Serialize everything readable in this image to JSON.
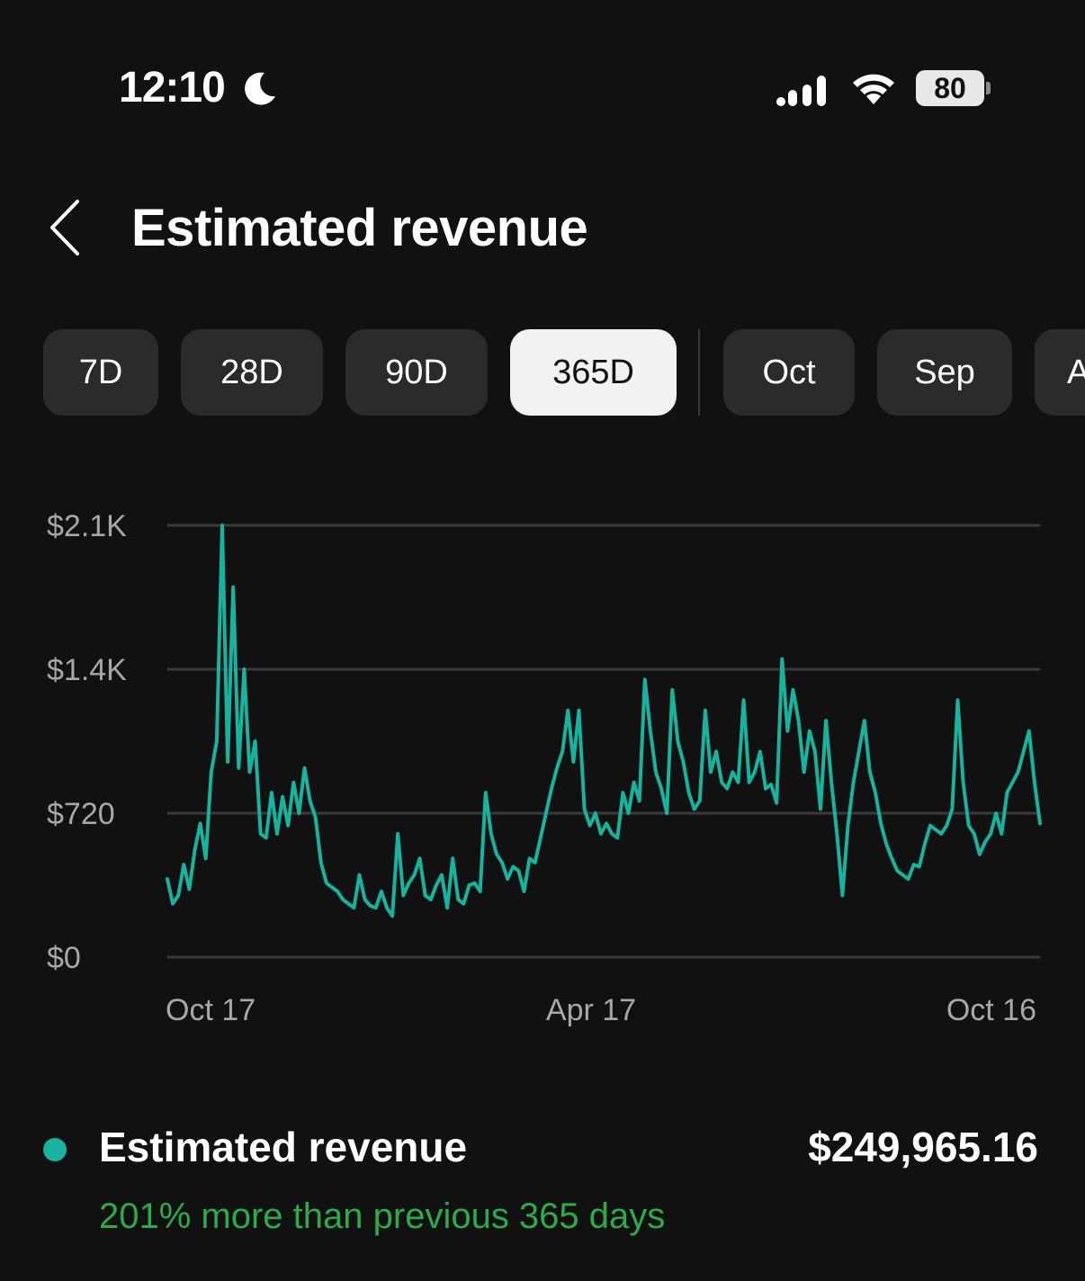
{
  "status_bar": {
    "time": "12:10",
    "battery": "80"
  },
  "header": {
    "title": "Estimated revenue"
  },
  "ranges": [
    {
      "label": "7D",
      "active": false
    },
    {
      "label": "28D",
      "active": false
    },
    {
      "label": "90D",
      "active": false
    },
    {
      "label": "365D",
      "active": true
    },
    {
      "label": "Oct",
      "active": false
    },
    {
      "label": "Sep",
      "active": false
    },
    {
      "label": "A",
      "active": false
    }
  ],
  "colors": {
    "line": "#18b39e",
    "change_text": "#2faa4a"
  },
  "chart_data": {
    "type": "line",
    "y_ticks": [
      "$2.1K",
      "$1.4K",
      "$720",
      "$0"
    ],
    "x_ticks": [
      "Oct 17",
      "Apr 17",
      "Oct 16"
    ],
    "ylim": [
      0,
      2100
    ],
    "grid": true,
    "series": [
      {
        "name": "Estimated revenue",
        "values": [
          380,
          260,
          300,
          450,
          330,
          520,
          650,
          480,
          900,
          1050,
          2100,
          950,
          1800,
          920,
          1400,
          900,
          1050,
          600,
          580,
          800,
          600,
          780,
          640,
          850,
          700,
          920,
          760,
          680,
          460,
          360,
          340,
          320,
          280,
          260,
          240,
          400,
          280,
          250,
          240,
          320,
          240,
          200,
          600,
          300,
          360,
          400,
          480,
          300,
          280,
          350,
          400,
          240,
          480,
          280,
          260,
          350,
          360,
          320,
          800,
          600,
          500,
          460,
          380,
          440,
          420,
          320,
          480,
          460,
          580,
          700,
          820,
          920,
          1000,
          1200,
          950,
          1200,
          720,
          640,
          700,
          600,
          650,
          600,
          580,
          800,
          700,
          850,
          760,
          1350,
          1100,
          900,
          820,
          700,
          1300,
          1050,
          950,
          800,
          720,
          760,
          1200,
          900,
          1000,
          850,
          820,
          900,
          850,
          1250,
          850,
          900,
          1000,
          820,
          840,
          750,
          1450,
          1100,
          1300,
          1150,
          900,
          1100,
          1000,
          720,
          1150,
          850,
          600,
          300,
          640,
          850,
          1000,
          1150,
          900,
          800,
          650,
          550,
          480,
          420,
          400,
          380,
          450,
          440,
          550,
          640,
          620,
          600,
          640,
          720,
          1250,
          850,
          640,
          600,
          500,
          560,
          600,
          700,
          600,
          800,
          850,
          900,
          1000,
          1100,
          850,
          650
        ]
      }
    ],
    "summary": {
      "label": "Estimated revenue",
      "total": "$249,965.16",
      "change": "201% more than previous 365 days"
    }
  }
}
